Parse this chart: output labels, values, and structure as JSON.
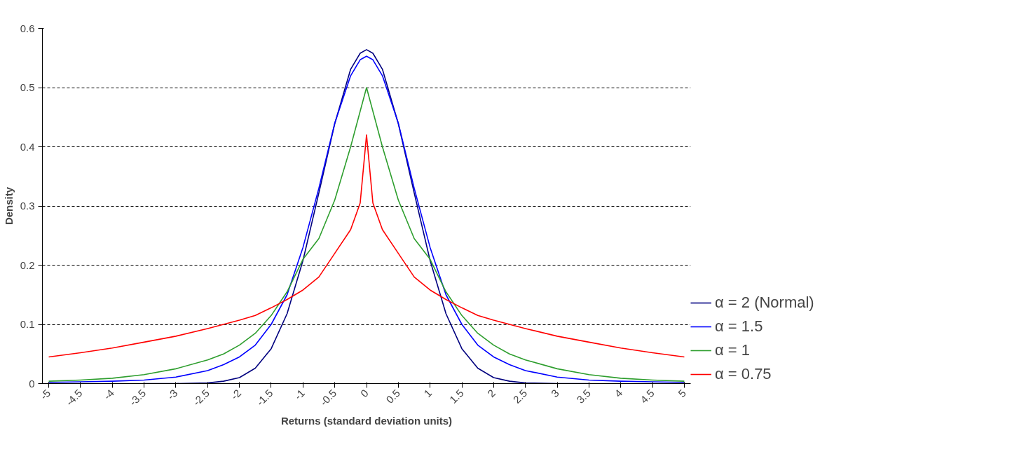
{
  "chart_data": {
    "type": "line",
    "xlabel": "Returns (standard deviation units)",
    "ylabel": "Density",
    "x": [
      -5,
      -4.5,
      -4,
      -3.5,
      -3,
      -2.5,
      -2.25,
      -2,
      -1.75,
      -1.5,
      -1.25,
      -1,
      -0.75,
      -0.5,
      -0.25,
      -0.1,
      0,
      0.1,
      0.25,
      0.5,
      0.75,
      1,
      1.25,
      1.5,
      1.75,
      2,
      2.25,
      2.5,
      3,
      3.5,
      4,
      4.5,
      5
    ],
    "series": [
      {
        "name": "α = 2 (Normal)",
        "color": "#00007f",
        "values": [
          null,
          null,
          null,
          0,
          0,
          0.001,
          0.004,
          0.01,
          0.026,
          0.059,
          0.118,
          0.208,
          0.322,
          0.439,
          0.531,
          0.558,
          0.564,
          0.558,
          0.531,
          0.439,
          0.322,
          0.208,
          0.118,
          0.059,
          0.026,
          0.01,
          0.004,
          0.001,
          0,
          0,
          null,
          null,
          null
        ]
      },
      {
        "name": "α = 1.5",
        "color": "#0000ff",
        "values": [
          0.002,
          0.003,
          0.004,
          0.006,
          0.011,
          0.022,
          0.032,
          0.045,
          0.065,
          0.1,
          0.15,
          0.23,
          0.33,
          0.44,
          0.52,
          0.547,
          0.553,
          0.547,
          0.52,
          0.44,
          0.33,
          0.23,
          0.15,
          0.1,
          0.065,
          0.045,
          0.032,
          0.022,
          0.011,
          0.006,
          0.004,
          0.003,
          0.002
        ]
      },
      {
        "name": "α = 1",
        "color": "#2e9e2e",
        "values": [
          0.004,
          0.006,
          0.009,
          0.015,
          0.025,
          0.04,
          0.05,
          0.065,
          0.085,
          0.115,
          0.155,
          0.21,
          0.245,
          0.31,
          0.4,
          0.46,
          0.5,
          0.46,
          0.4,
          0.31,
          0.245,
          0.21,
          0.155,
          0.115,
          0.085,
          0.065,
          0.05,
          0.04,
          0.025,
          0.015,
          0.009,
          0.006,
          0.004
        ]
      },
      {
        "name": "α = 0.75",
        "color": "#ff0000",
        "values": [
          0.045,
          0.052,
          0.06,
          0.07,
          0.08,
          0.093,
          0.1,
          0.107,
          0.115,
          0.128,
          0.142,
          0.158,
          0.18,
          0.22,
          0.26,
          0.305,
          0.42,
          0.305,
          0.26,
          0.22,
          0.18,
          0.158,
          0.142,
          0.128,
          0.115,
          0.107,
          0.1,
          0.093,
          0.08,
          0.07,
          0.06,
          0.052,
          0.045
        ]
      }
    ],
    "xlim": [
      -5.1,
      5.1
    ],
    "xticks": [
      -5,
      -4.5,
      -4,
      -3.5,
      -3,
      -2.5,
      -2,
      -1.5,
      -1,
      -0.5,
      0,
      0.5,
      1,
      1.5,
      2,
      2.5,
      3,
      3.5,
      4,
      4.5,
      5
    ],
    "ylim": [
      0,
      0.6
    ],
    "yticks": [
      0,
      0.1,
      0.2,
      0.3,
      0.4,
      0.5,
      0.6
    ],
    "grid": "y",
    "legend": "bottom right",
    "marker": "none",
    "line_style": "solid"
  }
}
